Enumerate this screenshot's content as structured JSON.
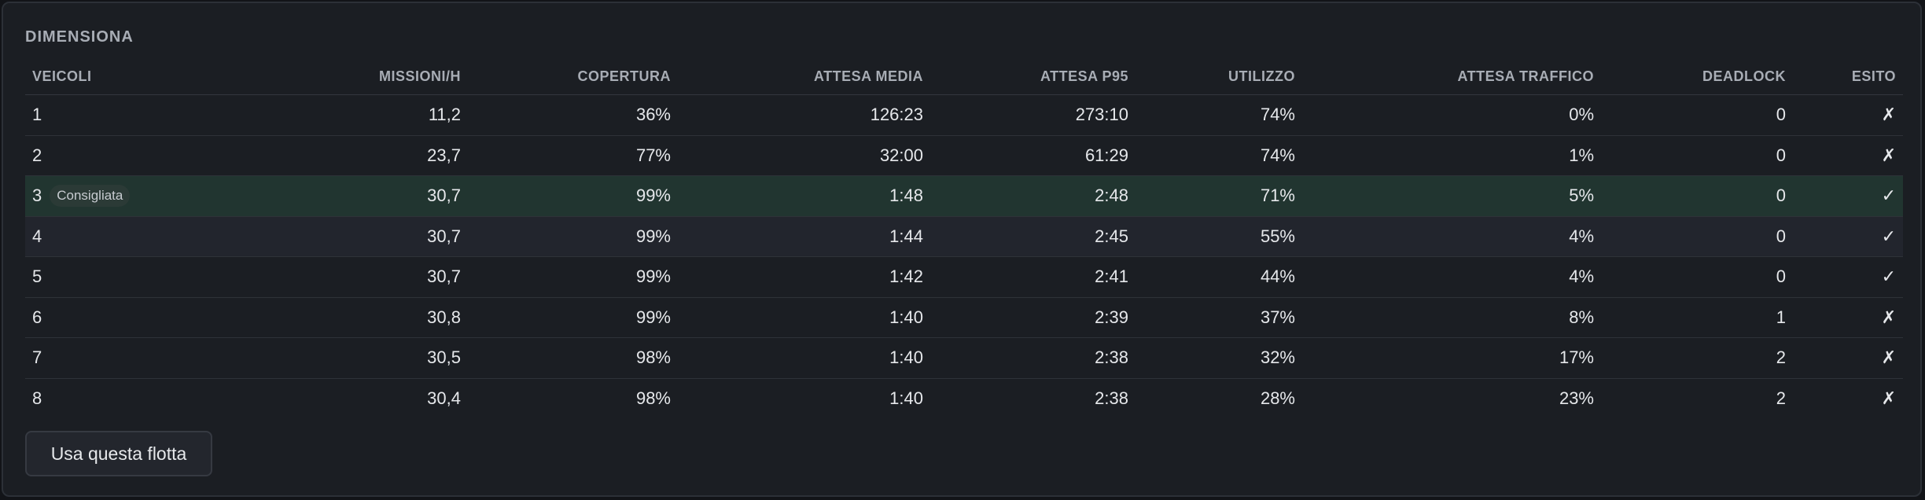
{
  "panel": {
    "title": "DIMENSIONA",
    "columns": [
      "VEICOLI",
      "MISSIONI/H",
      "COPERTURA",
      "ATTESA MEDIA",
      "ATTESA P95",
      "UTILIZZO",
      "ATTESA TRAFFICO",
      "DEADLOCK",
      "ESITO"
    ],
    "rows": [
      {
        "cells": [
          "1",
          "11,2",
          "36%",
          "126:23",
          "273:10",
          "74%",
          "0%",
          "0",
          "✗"
        ]
      },
      {
        "cells": [
          "2",
          "23,7",
          "77%",
          "32:00",
          "61:29",
          "74%",
          "1%",
          "0",
          "✗"
        ]
      },
      {
        "cells": [
          "3",
          "30,7",
          "99%",
          "1:48",
          "2:48",
          "71%",
          "5%",
          "0",
          "✓"
        ],
        "badge": "Consigliata"
      },
      {
        "cells": [
          "4",
          "30,7",
          "99%",
          "1:44",
          "2:45",
          "55%",
          "4%",
          "0",
          "✓"
        ]
      },
      {
        "cells": [
          "5",
          "30,7",
          "99%",
          "1:42",
          "2:41",
          "44%",
          "4%",
          "0",
          "✓"
        ]
      },
      {
        "cells": [
          "6",
          "30,8",
          "99%",
          "1:40",
          "2:39",
          "37%",
          "8%",
          "1",
          "✗"
        ]
      },
      {
        "cells": [
          "7",
          "30,5",
          "98%",
          "1:40",
          "2:38",
          "32%",
          "17%",
          "2",
          "✗"
        ]
      },
      {
        "cells": [
          "8",
          "30,4",
          "98%",
          "1:40",
          "2:38",
          "28%",
          "23%",
          "2",
          "✗"
        ]
      }
    ],
    "button": "Usa questa flotta"
  }
}
